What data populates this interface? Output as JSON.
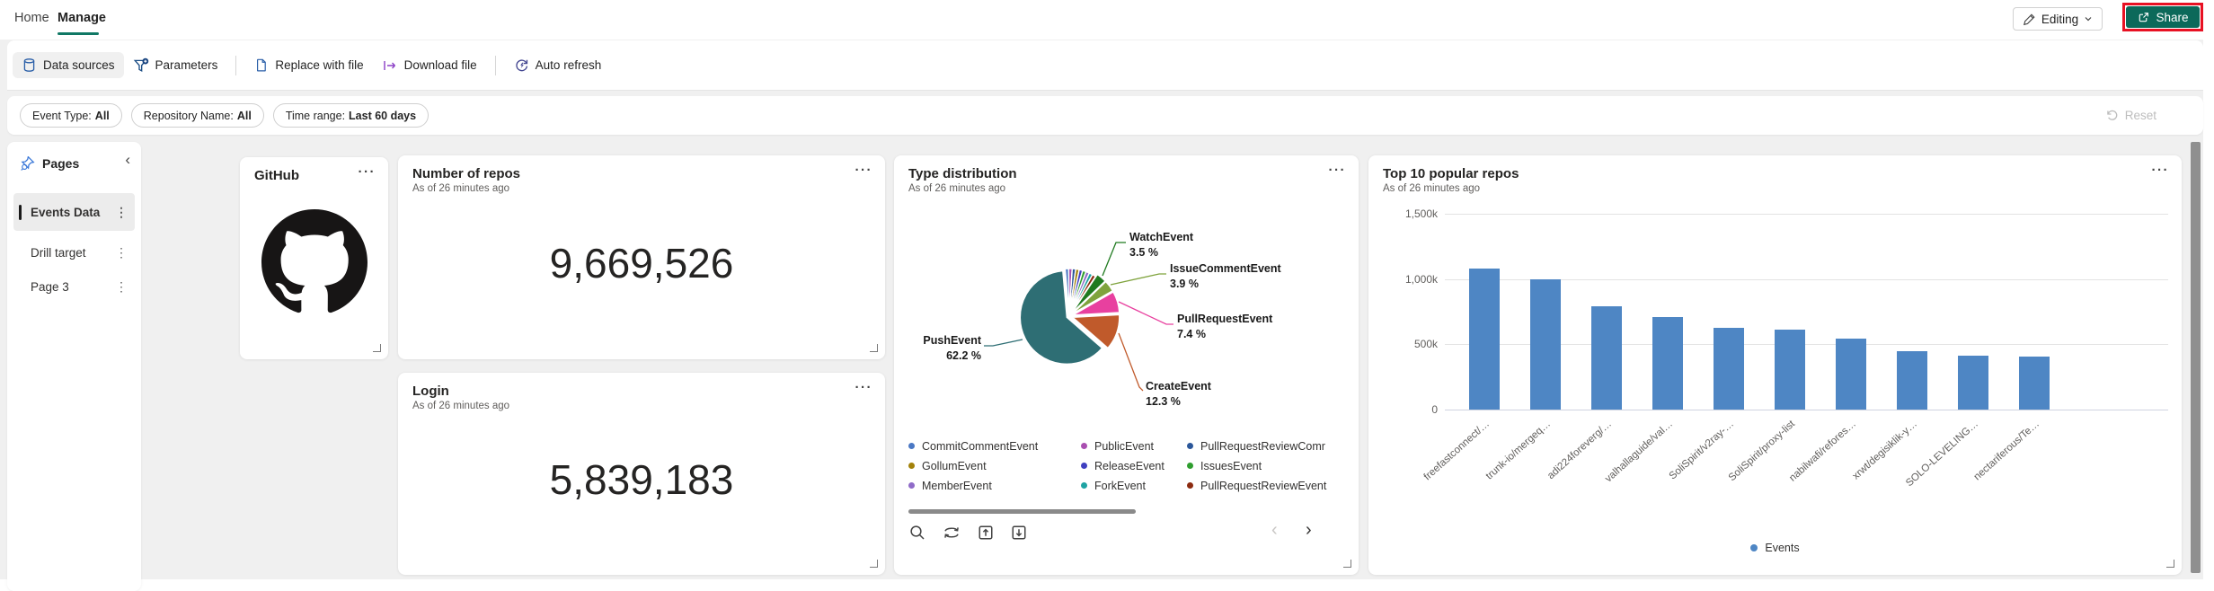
{
  "header": {
    "tabs": [
      {
        "label": "Home",
        "active": false
      },
      {
        "label": "Manage",
        "active": true
      }
    ],
    "editing_button": {
      "label": "Editing"
    },
    "share_button": {
      "label": "Share"
    }
  },
  "toolbar": {
    "items": [
      {
        "label": "Data sources",
        "icon": "database-icon"
      },
      {
        "label": "Parameters",
        "icon": "filter-add-icon"
      },
      {
        "label": "Replace with file",
        "icon": "file-icon"
      },
      {
        "label": "Download file",
        "icon": "download-file-icon"
      },
      {
        "label": "Auto refresh",
        "icon": "auto-refresh-icon"
      }
    ]
  },
  "filter_bar": {
    "chips": [
      {
        "label": "Event Type:",
        "value": "All"
      },
      {
        "label": "Repository Name:",
        "value": "All"
      },
      {
        "label": "Time range:",
        "value": "Last 60 days"
      }
    ],
    "reset": {
      "label": "Reset",
      "enabled": false
    }
  },
  "pages_panel": {
    "title": "Pages",
    "items": [
      {
        "label": "Events Data",
        "active": true
      },
      {
        "label": "Drill target",
        "active": false
      },
      {
        "label": "Page 3",
        "active": false
      }
    ]
  },
  "cards": {
    "github": {
      "title": "GitHub"
    },
    "number_of_repos": {
      "title": "Number of repos",
      "subtitle": "As of 26 minutes ago",
      "value": "9,669,526"
    },
    "login": {
      "title": "Login",
      "subtitle": "As of 26 minutes ago",
      "value": "5,839,183"
    },
    "type_distribution": {
      "title": "Type distribution",
      "subtitle": "As of 26 minutes ago"
    },
    "top_repos": {
      "title": "Top 10 popular repos",
      "subtitle": "As of 26 minutes ago"
    }
  },
  "glyphs": {
    "more_options": "···",
    "kebab_menu": "⋮",
    "collapse_chevron": "‹",
    "page_prev": "‹",
    "page_next": "›"
  },
  "colors": {
    "accent_teal": "#0c695a",
    "annotation_red": "#e81123",
    "bar_blue": "#4e86c4"
  },
  "chart_data": [
    {
      "type": "pie",
      "card": "type_distribution",
      "labeled_slices": [
        {
          "name": "PushEvent",
          "pct": 62.2,
          "color": "#2e6e74"
        },
        {
          "name": "CreateEvent",
          "pct": 12.3,
          "color": "#c05a2b"
        },
        {
          "name": "PullRequestEvent",
          "pct": 7.4,
          "color": "#e8409f"
        },
        {
          "name": "IssueCommentEvent",
          "pct": 3.9,
          "color": "#7fa33d"
        },
        {
          "name": "WatchEvent",
          "pct": 3.5,
          "color": "#1f7a1f"
        }
      ],
      "unlabeled_remainder_pct": 10.7,
      "legend_columns": 3,
      "legend": [
        {
          "name": "CommitCommentEvent",
          "color": "#4a78c4"
        },
        {
          "name": "PublicEvent",
          "color": "#a94fb0"
        },
        {
          "name": "PullRequestReviewComr",
          "color": "#2b579a"
        },
        {
          "name": "GollumEvent",
          "color": "#a3820a"
        },
        {
          "name": "ReleaseEvent",
          "color": "#4040c0"
        },
        {
          "name": "IssuesEvent",
          "color": "#2f9e2f"
        },
        {
          "name": "MemberEvent",
          "color": "#8f6bc8"
        },
        {
          "name": "ForkEvent",
          "color": "#1fa3a3"
        },
        {
          "name": "PullRequestReviewEvent",
          "color": "#8c2b10"
        }
      ]
    },
    {
      "type": "bar",
      "card": "top_repos",
      "series": [
        {
          "name": "Events",
          "color": "#4e86c4"
        }
      ],
      "categories": [
        "freefastconnect/…",
        "trunk-io/mergeq…",
        "adi224foreverg/…",
        "valhallaguide/val…",
        "SoliSpirit/v2ray-…",
        "SoliSpirit/proxy-list",
        "nabilwafi/refores…",
        "xrwt/degisiklik-y…",
        "SOLO-LEVELING…",
        "nectariferous/Te…"
      ],
      "values_thousands": [
        1080,
        1000,
        790,
        710,
        625,
        610,
        545,
        450,
        415,
        405
      ],
      "y_ticks": [
        {
          "label": "1,500k",
          "value": 1500
        },
        {
          "label": "1,000k",
          "value": 1000
        },
        {
          "label": "500k",
          "value": 500
        },
        {
          "label": "0",
          "value": 0
        }
      ],
      "y_max_thousands": 1500,
      "grid": true,
      "legend_position": "bottom"
    }
  ]
}
